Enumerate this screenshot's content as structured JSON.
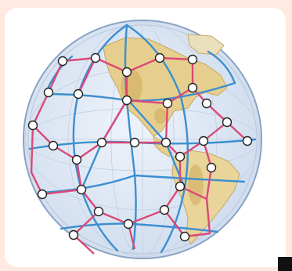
{
  "map": {
    "title": "",
    "colors": {
      "background": "#ffe9e0",
      "ocean": "#dde7f4",
      "land": "#e9d59b",
      "land_dark": "#c9a860",
      "blue_grid": "#3b8fd0",
      "red_grid": "#d94a78",
      "node_fill": "#ffffff",
      "node_stroke": "#222222"
    },
    "node_count": 28,
    "features": [
      "globe-disc",
      "landmass-americas",
      "blue-grid-lines",
      "red-grid-lines",
      "grid-nodes"
    ]
  }
}
